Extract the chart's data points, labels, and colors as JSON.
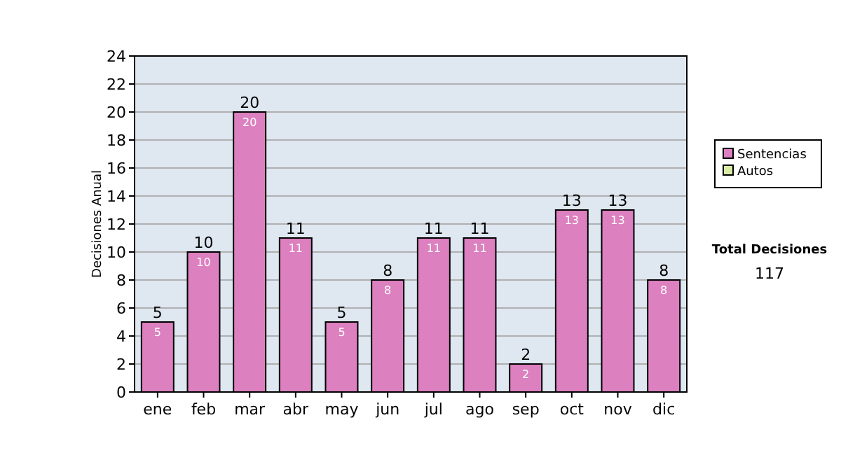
{
  "chart_data": {
    "type": "bar",
    "stacked": true,
    "ylabel": "Decisiones Anual",
    "categories": [
      "ene",
      "feb",
      "mar",
      "abr",
      "may",
      "jun",
      "jul",
      "ago",
      "sep",
      "oct",
      "nov",
      "dic"
    ],
    "series": [
      {
        "name": "Sentencias",
        "color": "#dc80c0",
        "values": [
          5,
          10,
          20,
          11,
          5,
          8,
          11,
          11,
          2,
          13,
          13,
          8
        ],
        "value_labels": [
          "5",
          "10",
          "20",
          "11",
          "5",
          "8",
          "11",
          "11",
          "2",
          "13",
          "13",
          "8"
        ]
      },
      {
        "name": "Autos",
        "color": "#d8eca4",
        "values": [
          0,
          0,
          0,
          0,
          0,
          0,
          0,
          0,
          0,
          0,
          0,
          0
        ]
      }
    ],
    "totals": [
      "5",
      "10",
      "20",
      "11",
      "5",
      "8",
      "11",
      "11",
      "2",
      "13",
      "13",
      "8"
    ],
    "ylim": [
      0,
      24
    ],
    "yticks": [
      0,
      2,
      4,
      6,
      8,
      10,
      12,
      14,
      16,
      18,
      20,
      22,
      24
    ],
    "grid": "y",
    "legend": "right",
    "annotations": [
      "Total Decisiones",
      "117"
    ]
  }
}
